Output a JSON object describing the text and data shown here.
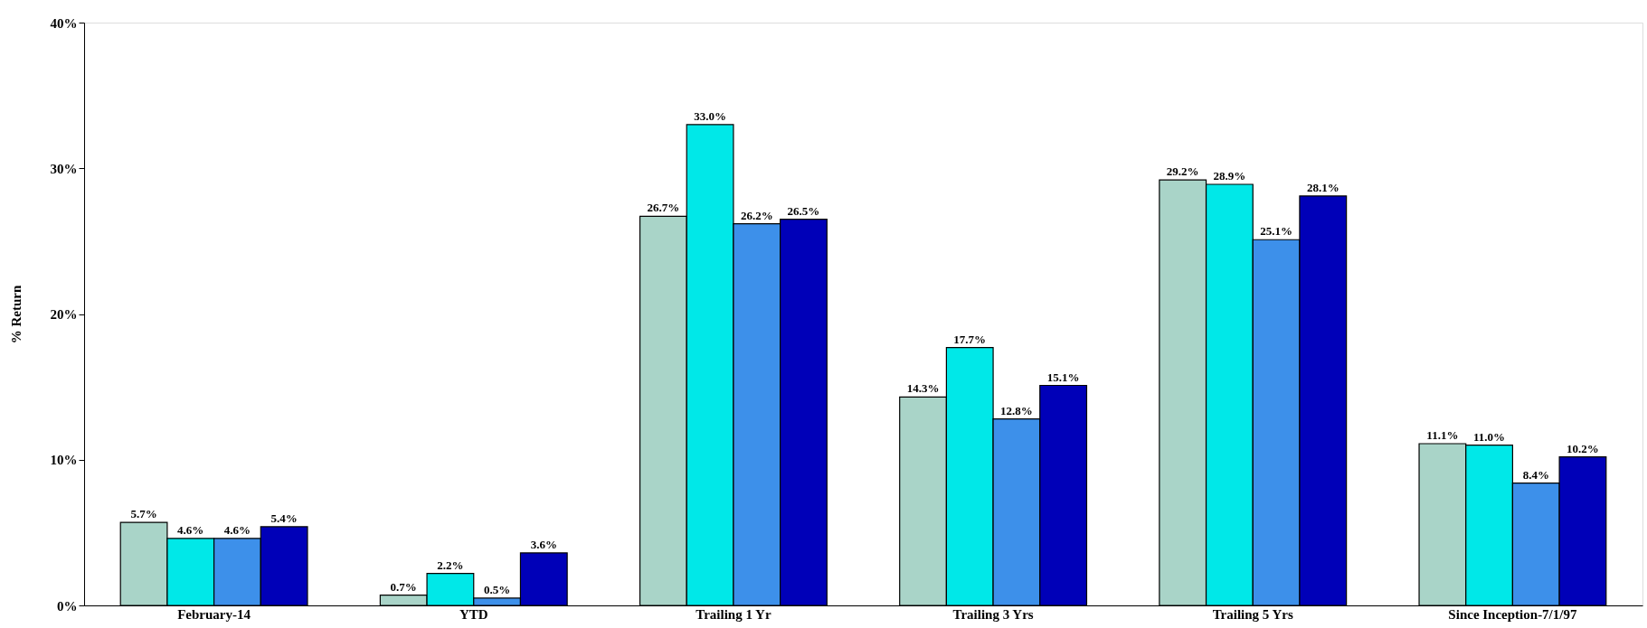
{
  "chart_data": {
    "type": "bar",
    "ylabel": "% Return",
    "categories": [
      "February-14",
      "YTD",
      "Trailing 1 Yr",
      "Trailing 3 Yrs",
      "Trailing 5 Yrs",
      "Since Inception-7/1/97"
    ],
    "series": [
      {
        "color": "#a9d4c8",
        "values": [
          5.7,
          0.7,
          26.7,
          14.3,
          29.2,
          11.1
        ],
        "value_labels": [
          "5.7%",
          "0.7%",
          "26.7%",
          "14.3%",
          "29.2%",
          "11.1%"
        ]
      },
      {
        "color": "#00e8e8",
        "values": [
          4.6,
          2.2,
          33.0,
          17.7,
          28.9,
          11.0
        ],
        "value_labels": [
          "4.6%",
          "2.2%",
          "33.0%",
          "17.7%",
          "28.9%",
          "11.0%"
        ]
      },
      {
        "color": "#3d90ea",
        "values": [
          4.6,
          0.5,
          26.2,
          12.8,
          25.1,
          8.4
        ],
        "value_labels": [
          "4.6%",
          "0.5%",
          "26.2%",
          "12.8%",
          "25.1%",
          "8.4%"
        ]
      },
      {
        "color": "#0000b8",
        "values": [
          5.4,
          3.6,
          26.5,
          15.1,
          28.1,
          10.2
        ],
        "value_labels": [
          "5.4%",
          "3.6%",
          "26.5%",
          "15.1%",
          "28.1%",
          "10.2%"
        ]
      }
    ],
    "ylim": [
      0,
      40
    ],
    "yticks": [
      {
        "value": 0,
        "label": "0%"
      },
      {
        "value": 10,
        "label": "10%"
      },
      {
        "value": 20,
        "label": "20%"
      },
      {
        "value": 30,
        "label": "30%"
      },
      {
        "value": 40,
        "label": "40%"
      }
    ],
    "grid": false,
    "legend": false
  }
}
